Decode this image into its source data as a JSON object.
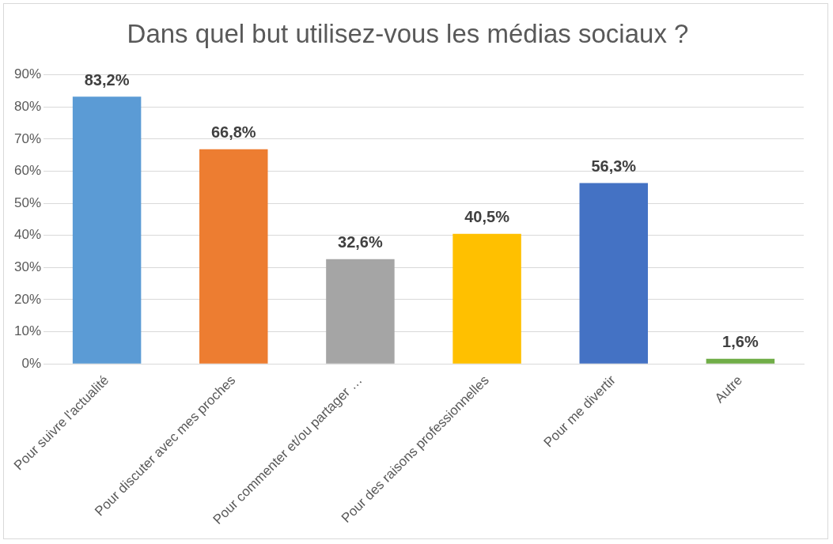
{
  "chart_data": {
    "type": "bar",
    "title": "Dans quel but utilisez-vous les médias sociaux ?",
    "categories": [
      "Pour suivre l'actualité",
      "Pour discuter avec mes proches",
      "Pour commenter et/ou partager …",
      "Pour des raisons professionnelles",
      "Pour me divertir",
      "Autre"
    ],
    "values": [
      83.2,
      66.8,
      32.6,
      40.5,
      56.3,
      1.6
    ],
    "colors": [
      "#5b9bd5",
      "#ed7d31",
      "#a5a5a5",
      "#ffc000",
      "#4472c4",
      "#70ad47"
    ],
    "value_labels": [
      "83,2%",
      "66,8%",
      "32,6%",
      "40,5%",
      "56,3%",
      "1,6%"
    ],
    "ylim": [
      0,
      90
    ],
    "yticks": [
      {
        "value": 0,
        "label": "0%"
      },
      {
        "value": 10,
        "label": "10%"
      },
      {
        "value": 20,
        "label": "20%"
      },
      {
        "value": 30,
        "label": "30%"
      },
      {
        "value": 40,
        "label": "40%"
      },
      {
        "value": 50,
        "label": "50%"
      },
      {
        "value": 60,
        "label": "60%"
      },
      {
        "value": 70,
        "label": "70%"
      },
      {
        "value": 80,
        "label": "80%"
      },
      {
        "value": 90,
        "label": "90%"
      }
    ],
    "grid": "y",
    "legend": false
  }
}
